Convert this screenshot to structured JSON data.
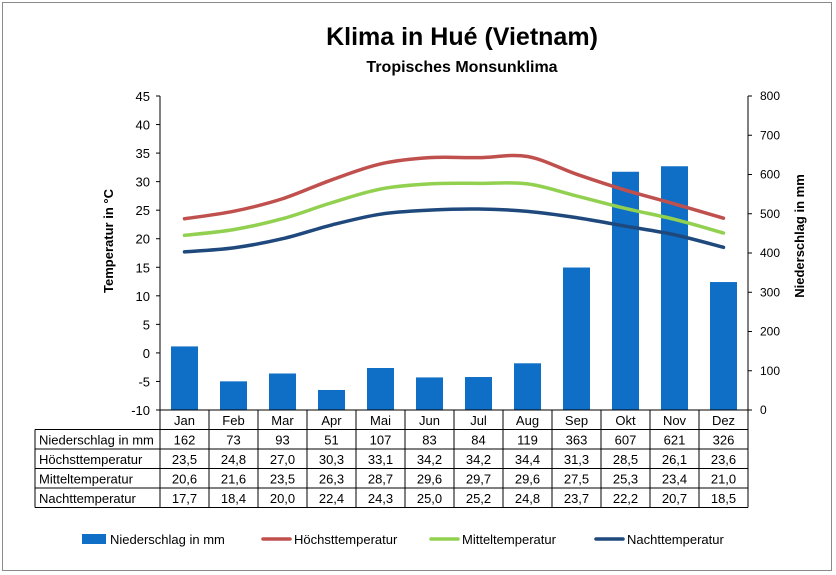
{
  "chart_data": {
    "type": "bar+line",
    "title": "Klima in Hué (Vietnam)",
    "subtitle": "Tropisches Monsunklima",
    "categories": [
      "Jan",
      "Feb",
      "Mar",
      "Apr",
      "Mai",
      "Jun",
      "Jul",
      "Aug",
      "Sep",
      "Okt",
      "Nov",
      "Dez"
    ],
    "ylabel_left": "Temperatur in °C",
    "ylabel_right": "Niederschlag in mm",
    "ylim_left": [
      -10,
      45
    ],
    "yticks_left": [
      "45",
      "40",
      "35",
      "30",
      "25",
      "20",
      "15",
      "10",
      "5",
      "0",
      "-5",
      "-10"
    ],
    "ylim_right": [
      0,
      800
    ],
    "yticks_right": [
      "800",
      "700",
      "600",
      "500",
      "400",
      "300",
      "200",
      "100",
      "0"
    ],
    "grid": false,
    "legend_position": "bottom",
    "series": [
      {
        "name": "Niederschlag in mm",
        "kind": "bar",
        "axis": "right",
        "color": "#0F6FC6",
        "values": [
          162,
          73,
          93,
          51,
          107,
          83,
          84,
          119,
          363,
          607,
          621,
          326
        ],
        "labels": [
          "162",
          "73",
          "93",
          "51",
          "107",
          "83",
          "84",
          "119",
          "363",
          "607",
          "621",
          "326"
        ]
      },
      {
        "name": "Höchsttemperatur",
        "kind": "line",
        "axis": "left",
        "color": "#C0504D",
        "values": [
          23.5,
          24.8,
          27.0,
          30.3,
          33.1,
          34.2,
          34.2,
          34.4,
          31.3,
          28.5,
          26.1,
          23.6
        ],
        "labels": [
          "23,5",
          "24,8",
          "27,0",
          "30,3",
          "33,1",
          "34,2",
          "34,2",
          "34,4",
          "31,3",
          "28,5",
          "26,1",
          "23,6"
        ]
      },
      {
        "name": "Mitteltemperatur",
        "kind": "line",
        "axis": "left",
        "color": "#92D050",
        "values": [
          20.6,
          21.6,
          23.5,
          26.3,
          28.7,
          29.6,
          29.7,
          29.6,
          27.5,
          25.3,
          23.4,
          21.0
        ],
        "labels": [
          "20,6",
          "21,6",
          "23,5",
          "26,3",
          "28,7",
          "29,6",
          "29,7",
          "29,6",
          "27,5",
          "25,3",
          "23,4",
          "21,0"
        ]
      },
      {
        "name": "Nachttemperatur",
        "kind": "line",
        "axis": "left",
        "color": "#1F497D",
        "values": [
          17.7,
          18.4,
          20.0,
          22.4,
          24.3,
          25.0,
          25.2,
          24.8,
          23.7,
          22.2,
          20.7,
          18.5
        ],
        "labels": [
          "17,7",
          "18,4",
          "20,0",
          "22,4",
          "24,3",
          "25,0",
          "25,2",
          "24,8",
          "23,7",
          "22,2",
          "20,7",
          "18,5"
        ]
      }
    ]
  }
}
